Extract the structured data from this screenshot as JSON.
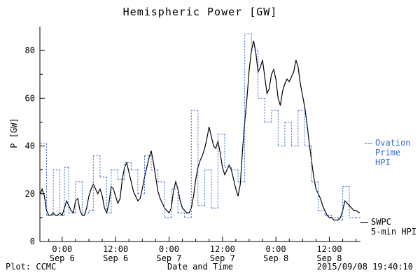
{
  "title": "Hemispheric Power [GW]",
  "footer": {
    "plot_source": "Plot: CCMC",
    "timestamp": "2015/09/08 19:40:10"
  },
  "legend": {
    "ovation_line1": "Ovation",
    "ovation_line2": "Prime HPI",
    "swpc_line1": "SWPC",
    "swpc_line2": "5-min HPI"
  },
  "colors": {
    "ovation_blue": "#3366CC",
    "swpc_black": "#000000",
    "background": "#FFFFFF"
  },
  "chart_data": {
    "type": "line",
    "title": "Hemispheric Power [GW]",
    "xlabel": "Date and Time",
    "ylabel": "P [GW]",
    "ylim": [
      0,
      90
    ],
    "yticks": [
      0,
      20,
      40,
      60,
      80
    ],
    "xlim_hours": [
      -5,
      67
    ],
    "x_unit": "hours since 2015-09-06 00:00",
    "grid": false,
    "legend_position": "right-margin",
    "xticks": [
      {
        "hour": 0,
        "time": "0:00",
        "date": "Sep 6"
      },
      {
        "hour": 12,
        "time": "12:00",
        "date": "Sep 6"
      },
      {
        "hour": 24,
        "time": "0:00",
        "date": "Sep 7"
      },
      {
        "hour": 36,
        "time": "12:00",
        "date": "Sep 7"
      },
      {
        "hour": 48,
        "time": "0:00",
        "date": "Sep 8"
      },
      {
        "hour": 60,
        "time": "12:00",
        "date": "Sep 8"
      }
    ],
    "series": [
      {
        "name": "SWPC 5-min HPI",
        "color": "#000000",
        "style": "solid",
        "points": [
          [
            -4.9,
            20
          ],
          [
            -4.5,
            22
          ],
          [
            -4,
            19
          ],
          [
            -3.5,
            13
          ],
          [
            -3,
            11
          ],
          [
            -2.5,
            11
          ],
          [
            -2,
            12
          ],
          [
            -1.5,
            11
          ],
          [
            -1,
            11
          ],
          [
            -0.5,
            12
          ],
          [
            0,
            11
          ],
          [
            0.5,
            14
          ],
          [
            1,
            17
          ],
          [
            1.5,
            15
          ],
          [
            2,
            13
          ],
          [
            2.5,
            12
          ],
          [
            3,
            17
          ],
          [
            3.5,
            18
          ],
          [
            4,
            13
          ],
          [
            4.5,
            11
          ],
          [
            5,
            11
          ],
          [
            5.5,
            14
          ],
          [
            6,
            19
          ],
          [
            6.5,
            22
          ],
          [
            7,
            24
          ],
          [
            7.5,
            22
          ],
          [
            8,
            20
          ],
          [
            8.5,
            22
          ],
          [
            9,
            19
          ],
          [
            9.5,
            14
          ],
          [
            10,
            12
          ],
          [
            10.5,
            16
          ],
          [
            11,
            23
          ],
          [
            11.5,
            22
          ],
          [
            12,
            19
          ],
          [
            12.5,
            16
          ],
          [
            13,
            18
          ],
          [
            13.5,
            26
          ],
          [
            14,
            31
          ],
          [
            14.5,
            33
          ],
          [
            15,
            29
          ],
          [
            15.5,
            25
          ],
          [
            16,
            21
          ],
          [
            16.5,
            19
          ],
          [
            17,
            17
          ],
          [
            17.5,
            18
          ],
          [
            18,
            22
          ],
          [
            18.5,
            27
          ],
          [
            19,
            31
          ],
          [
            19.5,
            35
          ],
          [
            20,
            38
          ],
          [
            20.5,
            33
          ],
          [
            21,
            27
          ],
          [
            21.5,
            21
          ],
          [
            22,
            18
          ],
          [
            22.5,
            16
          ],
          [
            23,
            14
          ],
          [
            23.5,
            13
          ],
          [
            24,
            12
          ],
          [
            24.5,
            14
          ],
          [
            25,
            21
          ],
          [
            25.5,
            25
          ],
          [
            26,
            22
          ],
          [
            26.5,
            17
          ],
          [
            27,
            14
          ],
          [
            27.5,
            13
          ],
          [
            28,
            12
          ],
          [
            28.5,
            12
          ],
          [
            29,
            14
          ],
          [
            29.5,
            19
          ],
          [
            30,
            26
          ],
          [
            30.5,
            31
          ],
          [
            31,
            34
          ],
          [
            31.5,
            36
          ],
          [
            32,
            39
          ],
          [
            32.5,
            43
          ],
          [
            33,
            48
          ],
          [
            33.5,
            44
          ],
          [
            34,
            40
          ],
          [
            34.5,
            39
          ],
          [
            35,
            42
          ],
          [
            35.5,
            37
          ],
          [
            36,
            31
          ],
          [
            36.5,
            28
          ],
          [
            37,
            30
          ],
          [
            37.5,
            32
          ],
          [
            38,
            30
          ],
          [
            38.5,
            26
          ],
          [
            39,
            22
          ],
          [
            39.5,
            19
          ],
          [
            40,
            24
          ],
          [
            40.5,
            38
          ],
          [
            41,
            50
          ],
          [
            41.5,
            60
          ],
          [
            42,
            72
          ],
          [
            42.5,
            80
          ],
          [
            43,
            84
          ],
          [
            43.5,
            79
          ],
          [
            44,
            71
          ],
          [
            44.5,
            73
          ],
          [
            45,
            76
          ],
          [
            45.5,
            69
          ],
          [
            46,
            62
          ],
          [
            46.5,
            64
          ],
          [
            47,
            70
          ],
          [
            47.5,
            72
          ],
          [
            48,
            68
          ],
          [
            48.5,
            60
          ],
          [
            49,
            57
          ],
          [
            49.5,
            63
          ],
          [
            50,
            66
          ],
          [
            50.5,
            68
          ],
          [
            51,
            67
          ],
          [
            51.5,
            69
          ],
          [
            52,
            71
          ],
          [
            52.5,
            76
          ],
          [
            53,
            73
          ],
          [
            53.5,
            66
          ],
          [
            54,
            61
          ],
          [
            54.5,
            56
          ],
          [
            55,
            49
          ],
          [
            55.5,
            41
          ],
          [
            56,
            34
          ],
          [
            56.5,
            27
          ],
          [
            57,
            22
          ],
          [
            57.5,
            20
          ],
          [
            58,
            18
          ],
          [
            58.5,
            15
          ],
          [
            59,
            13
          ],
          [
            59.5,
            11
          ],
          [
            60,
            10
          ],
          [
            60.5,
            10
          ],
          [
            61,
            9
          ],
          [
            61.5,
            9
          ],
          [
            62,
            9
          ],
          [
            62.5,
            10
          ],
          [
            63,
            13
          ],
          [
            63.5,
            17
          ],
          [
            64,
            16
          ],
          [
            64.5,
            15
          ],
          [
            65,
            14
          ],
          [
            65.5,
            13
          ],
          [
            66,
            13
          ],
          [
            66.8,
            12
          ]
        ]
      },
      {
        "name": "Ovation Prime HPI",
        "color": "#3366CC",
        "style": "dotted-step",
        "points": [
          [
            -4.9,
            41
          ],
          [
            -3.5,
            11
          ],
          [
            -2,
            30
          ],
          [
            -0.5,
            11
          ],
          [
            0.5,
            31
          ],
          [
            1.5,
            12
          ],
          [
            3,
            25
          ],
          [
            4.5,
            12
          ],
          [
            6,
            13
          ],
          [
            7,
            36
          ],
          [
            8.5,
            27
          ],
          [
            10,
            12
          ],
          [
            11,
            30
          ],
          [
            12.5,
            26
          ],
          [
            14,
            33
          ],
          [
            15.5,
            30
          ],
          [
            17,
            20
          ],
          [
            18.5,
            36
          ],
          [
            20,
            30
          ],
          [
            21.5,
            25
          ],
          [
            23,
            10
          ],
          [
            24.5,
            22
          ],
          [
            26,
            12
          ],
          [
            27.5,
            10
          ],
          [
            29,
            55
          ],
          [
            30.5,
            15
          ],
          [
            32,
            30
          ],
          [
            33.5,
            14
          ],
          [
            35,
            45
          ],
          [
            36.5,
            31
          ],
          [
            38,
            30
          ],
          [
            39.5,
            25
          ],
          [
            41,
            87
          ],
          [
            42.5,
            80
          ],
          [
            44,
            60
          ],
          [
            45.5,
            50
          ],
          [
            47,
            55
          ],
          [
            48.5,
            40
          ],
          [
            50,
            50
          ],
          [
            51.5,
            40
          ],
          [
            53,
            55
          ],
          [
            54.5,
            40
          ],
          [
            56,
            25
          ],
          [
            57.5,
            13
          ],
          [
            59,
            11
          ],
          [
            60.5,
            10
          ],
          [
            62,
            9
          ],
          [
            63,
            23
          ],
          [
            64.5,
            10
          ],
          [
            66,
            10
          ],
          [
            67,
            10
          ]
        ]
      }
    ]
  }
}
